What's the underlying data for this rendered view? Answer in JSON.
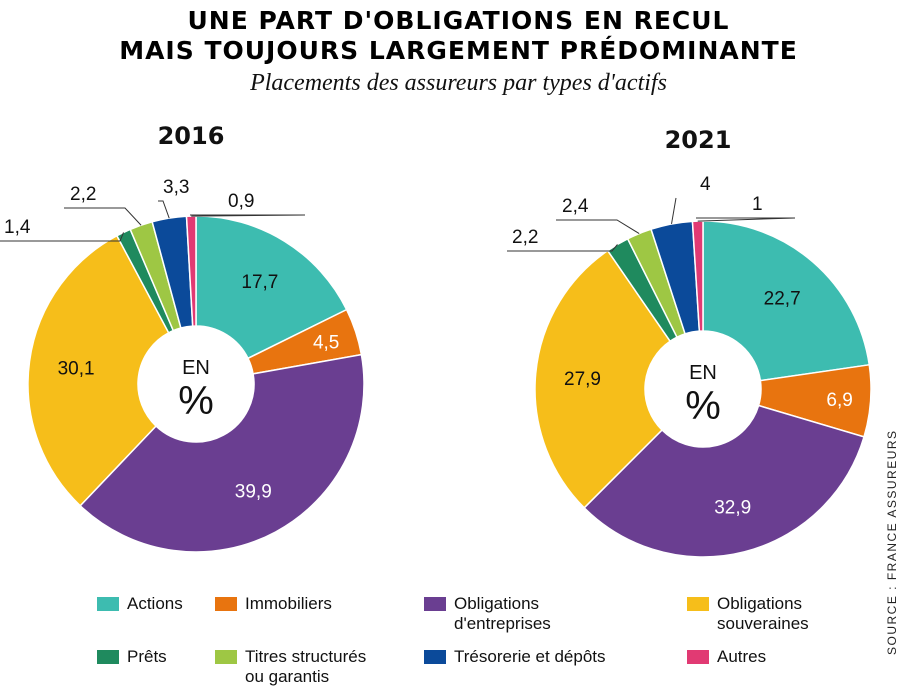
{
  "title_lines": [
    "UNE PART D'OBLIGATIONS EN RECUL",
    "MAIS TOUJOURS LARGEMENT PRÉDOMINANTE"
  ],
  "subtitle": "Placements des assureurs par types d'actifs",
  "source": "SOURCE : FRANCE ASSUREURS",
  "center_label": {
    "line1": "EN",
    "line2": "%"
  },
  "legend": [
    {
      "key": "actions",
      "label": "Actions"
    },
    {
      "key": "immobiliers",
      "label": "Immobiliers"
    },
    {
      "key": "obl_entreprises",
      "label": "Obligations\nd'entreprises"
    },
    {
      "key": "obl_souveraines",
      "label": "Obligations\nsouveraines"
    },
    {
      "key": "prets",
      "label": "Prêts"
    },
    {
      "key": "titres",
      "label": "Titres structurés\nou garantis"
    },
    {
      "key": "tresorerie",
      "label": "Trésorerie et dépôts"
    },
    {
      "key": "autres",
      "label": "Autres"
    }
  ],
  "colors": {
    "actions": "#3dbcb0",
    "immobiliers": "#e8740f",
    "obl_entreprises": "#6a3e91",
    "obl_souveraines": "#f6be1a",
    "prets": "#1f8a5e",
    "titres": "#9ec744",
    "tresorerie": "#0b4a9a",
    "autres": "#e13a73"
  },
  "chart_data": [
    {
      "type": "pie",
      "title": "2016",
      "unit": "%",
      "series": [
        {
          "key": "actions",
          "label": "17,7",
          "value": 17.7
        },
        {
          "key": "immobiliers",
          "label": "4,5",
          "value": 4.5
        },
        {
          "key": "obl_entreprises",
          "label": "39,9",
          "value": 39.9
        },
        {
          "key": "obl_souveraines",
          "label": "30,1",
          "value": 30.1
        },
        {
          "key": "prets",
          "label": "1,4",
          "value": 1.4
        },
        {
          "key": "titres",
          "label": "2,2",
          "value": 2.2
        },
        {
          "key": "tresorerie",
          "label": "3,3",
          "value": 3.3
        },
        {
          "key": "autres",
          "label": "0,9",
          "value": 0.9
        }
      ]
    },
    {
      "type": "pie",
      "title": "2021",
      "unit": "%",
      "series": [
        {
          "key": "actions",
          "label": "22,7",
          "value": 22.7
        },
        {
          "key": "immobiliers",
          "label": "6,9",
          "value": 6.9
        },
        {
          "key": "obl_entreprises",
          "label": "32,9",
          "value": 32.9
        },
        {
          "key": "obl_souveraines",
          "label": "27,9",
          "value": 27.9
        },
        {
          "key": "prets",
          "label": "2,2",
          "value": 2.2
        },
        {
          "key": "titres",
          "label": "2,4",
          "value": 2.4
        },
        {
          "key": "tresorerie",
          "label": "4",
          "value": 4
        },
        {
          "key": "autres",
          "label": "1",
          "value": 1
        }
      ]
    }
  ]
}
